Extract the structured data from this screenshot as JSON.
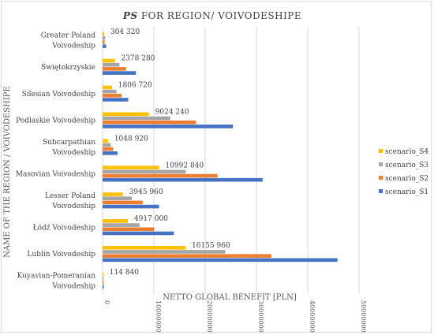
{
  "chart_data": {
    "type": "bar",
    "orientation": "horizontal",
    "title_prefix": "PS",
    "title_rest": " FOR REGION/ VOIVODESHIPE",
    "xlabel": "NETTO GLOBAL BENEFIT [PLN]",
    "ylabel": "NAME OF THE REGION / VOIVODESHIPE",
    "xlim": [
      0,
      50000000
    ],
    "xticks": [
      0,
      10000000,
      20000000,
      30000000,
      40000000,
      50000000
    ],
    "xtick_labels": [
      "0",
      "10000000",
      "20000000",
      "30000000",
      "40000000",
      "50000000"
    ],
    "grid": "vertical",
    "legend_position": "right",
    "categories": [
      [
        "Greater Poland",
        "Voivodeship"
      ],
      [
        "Świętokrzyskie"
      ],
      [
        "Silesian Voivodeship"
      ],
      [
        "Podlaskie Voivodeship"
      ],
      [
        "Subcarpathian",
        "Voivodeship"
      ],
      [
        "Masovian Voivodeship"
      ],
      [
        "Lesser Poland",
        "Voivodeship"
      ],
      [
        "Łódź Voivodeship"
      ],
      [
        "Lublin Voivodeship"
      ],
      [
        "Kuyavian-Pomeranian",
        "Voivodeship"
      ]
    ],
    "data_labels": [
      "304 320",
      "2378 280",
      "1806 720",
      "9024 240",
      "1048 920",
      "10992 840",
      "3945 960",
      "4917 000",
      "16155 960",
      "114 840"
    ],
    "series": [
      {
        "name": "scenario_S4",
        "color": "#ffc000",
        "values": [
          304320,
          2378280,
          1806720,
          9024240,
          1048920,
          10992840,
          3945960,
          4917000,
          16155960,
          114840
        ]
      },
      {
        "name": "scenario_S3",
        "color": "#a5a5a5",
        "values": [
          500000,
          3300000,
          2700000,
          13200000,
          1600000,
          16200000,
          5700000,
          7200000,
          23900000,
          180000
        ]
      },
      {
        "name": "scenario_S2",
        "color": "#ed7d31",
        "values": [
          400000,
          4600000,
          3700000,
          18200000,
          2000000,
          22400000,
          7800000,
          10000000,
          32900000,
          150000
        ]
      },
      {
        "name": "scenario_S1",
        "color": "#4472c4",
        "values": [
          700000,
          6500000,
          5000000,
          25400000,
          2900000,
          31200000,
          11000000,
          13900000,
          45800000,
          250000
        ]
      }
    ]
  }
}
